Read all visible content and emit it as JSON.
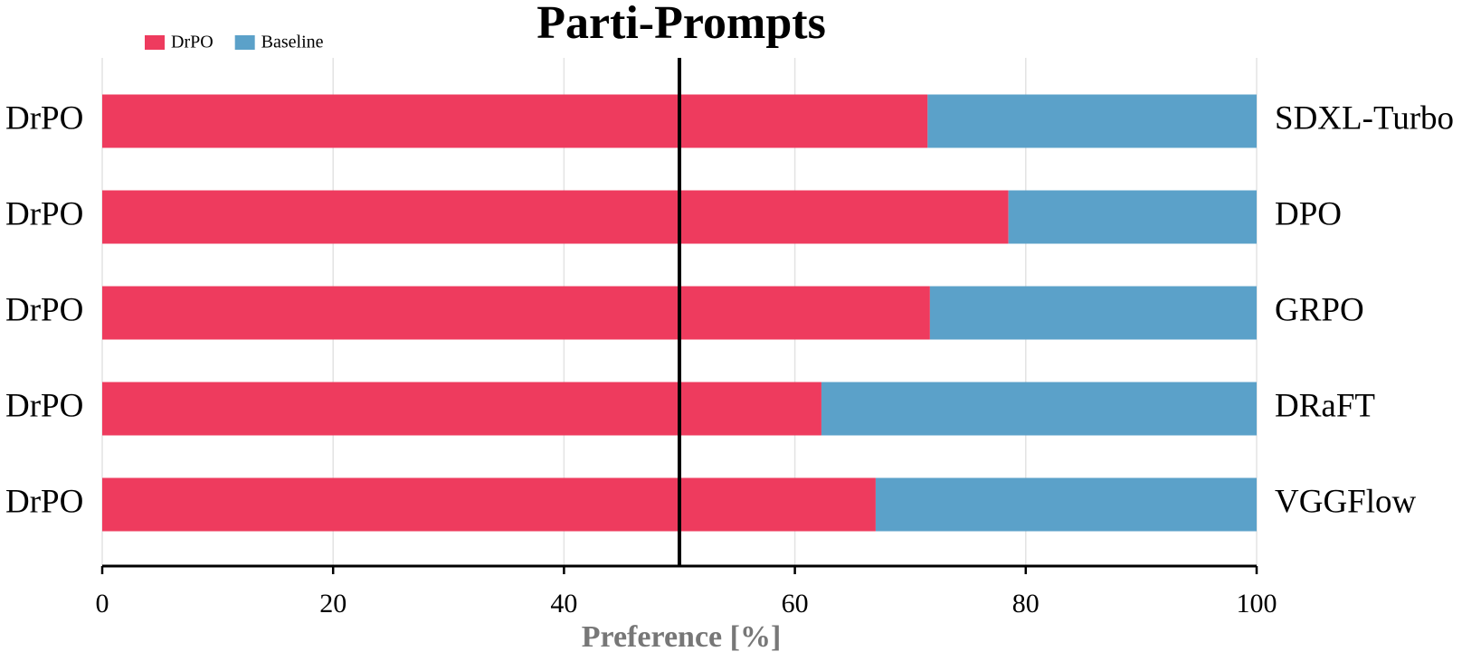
{
  "chart_data": {
    "type": "stacked-barh",
    "title": "Parti-Prompts",
    "left_labels": [
      "DrPO",
      "DrPO",
      "DrPO",
      "DrPO",
      "DrPO"
    ],
    "categories": [
      "SDXL-Turbo",
      "DPO",
      "GRPO",
      "DRaFT",
      "VGGFlow"
    ],
    "series": [
      {
        "name": "DrPO",
        "color": "#ee3b5e",
        "values": [
          71.5,
          78.5,
          71.7,
          62.3,
          67
        ]
      },
      {
        "name": "Baseline",
        "color": "#5ba1c9",
        "values": [
          28.5,
          21.5,
          28.3,
          37.7,
          33
        ]
      }
    ],
    "xlabel": "Preference [%]",
    "xlim": [
      0,
      100
    ],
    "xticks": [
      0,
      20,
      40,
      60,
      80,
      100
    ],
    "vline": 50,
    "grid": true,
    "legend": "top-left"
  }
}
